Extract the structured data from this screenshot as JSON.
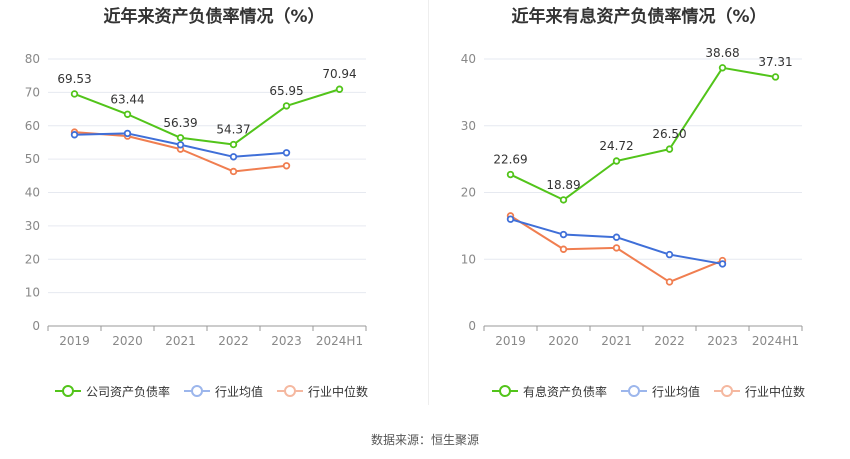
{
  "colors": {
    "company": "#52c41a",
    "industry_avg": "#3f6fd8",
    "industry_median": "#f07e50",
    "grid": "#e6e9f0",
    "axis_text": "#888888"
  },
  "source_text": "数据来源：恒生聚源",
  "chart_data": [
    {
      "type": "line",
      "title": "近年来资产负债率情况（%）",
      "categories": [
        "2019",
        "2020",
        "2021",
        "2022",
        "2023",
        "2024H1"
      ],
      "ylim": [
        0,
        80
      ],
      "yticks": [
        0,
        10,
        20,
        30,
        40,
        50,
        60,
        70,
        80
      ],
      "grid": true,
      "legend_position": "bottom",
      "series": [
        {
          "name": "公司资产负债率",
          "color_key": "company",
          "labeled": true,
          "values": [
            69.53,
            63.44,
            56.39,
            54.37,
            65.95,
            70.94
          ],
          "labels": [
            "69.53",
            "63.44",
            "56.39",
            "54.37",
            "65.95",
            "70.94"
          ]
        },
        {
          "name": "行业均值",
          "color_key": "industry_avg",
          "labeled": false,
          "values": [
            57.3,
            57.7,
            54.3,
            50.7,
            51.9,
            null
          ]
        },
        {
          "name": "行业中位数",
          "color_key": "industry_median",
          "labeled": false,
          "values": [
            58.1,
            56.9,
            53.0,
            46.3,
            48.0,
            null
          ]
        }
      ]
    },
    {
      "type": "line",
      "title": "近年来有息资产负债率情况（%）",
      "categories": [
        "2019",
        "2020",
        "2021",
        "2022",
        "2023",
        "2024H1"
      ],
      "ylim": [
        0,
        40
      ],
      "yticks": [
        0,
        10,
        20,
        30,
        40
      ],
      "grid": true,
      "legend_position": "bottom",
      "series": [
        {
          "name": "有息资产负债率",
          "color_key": "company",
          "labeled": true,
          "values": [
            22.69,
            18.89,
            24.72,
            26.5,
            38.68,
            37.31
          ],
          "labels": [
            "22.69",
            "18.89",
            "24.72",
            "26.50",
            "38.68",
            "37.31"
          ]
        },
        {
          "name": "行业均值",
          "color_key": "industry_avg",
          "labeled": false,
          "values": [
            16.0,
            13.7,
            13.3,
            10.7,
            9.3,
            null
          ]
        },
        {
          "name": "行业中位数",
          "color_key": "industry_median",
          "labeled": false,
          "values": [
            16.5,
            11.5,
            11.7,
            6.6,
            9.8,
            null
          ]
        }
      ]
    }
  ]
}
